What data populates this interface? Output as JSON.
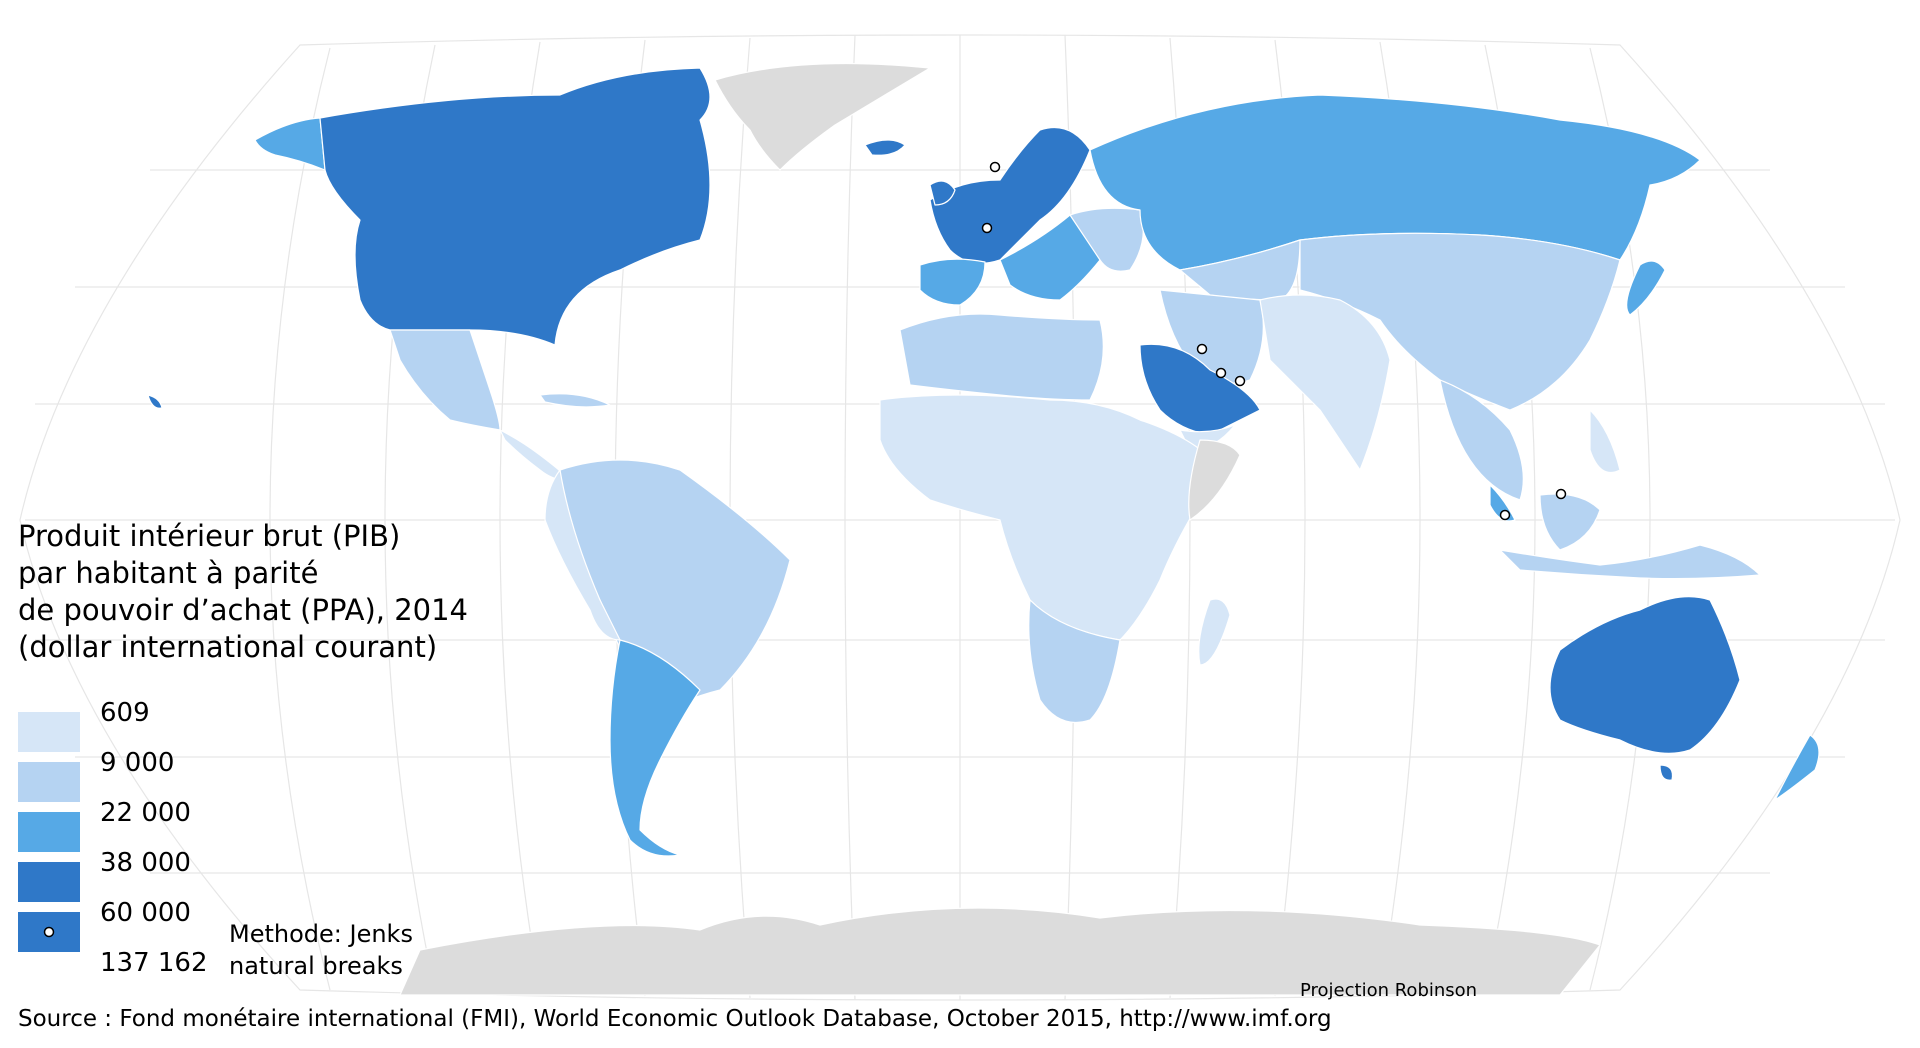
{
  "title": "Produit intérieur brut (PIB)\npar habitant à parité\nde pouvoir d’achat (PPA), 2014\n(dollar international courant)",
  "legend": {
    "breaks": [
      "609",
      "9 000",
      "22 000",
      "38 000",
      "60 000",
      "137 162"
    ],
    "colors": [
      "#d6e6f7",
      "#b5d3f2",
      "#56a9e6",
      "#2f78c8",
      "#2f78c8"
    ],
    "marker_color": "#ffffff",
    "no_data_color": "#dcdcdc",
    "ocean_color": "#ffffff",
    "graticule_color": "#e6e6e6"
  },
  "method": "Methode: Jenks\nnatural breaks",
  "projection": "Projection Robinson",
  "source": "Source : Fond monétaire international (FMI), World Economic Outlook Database, October 2015, http://www.imf.org"
}
